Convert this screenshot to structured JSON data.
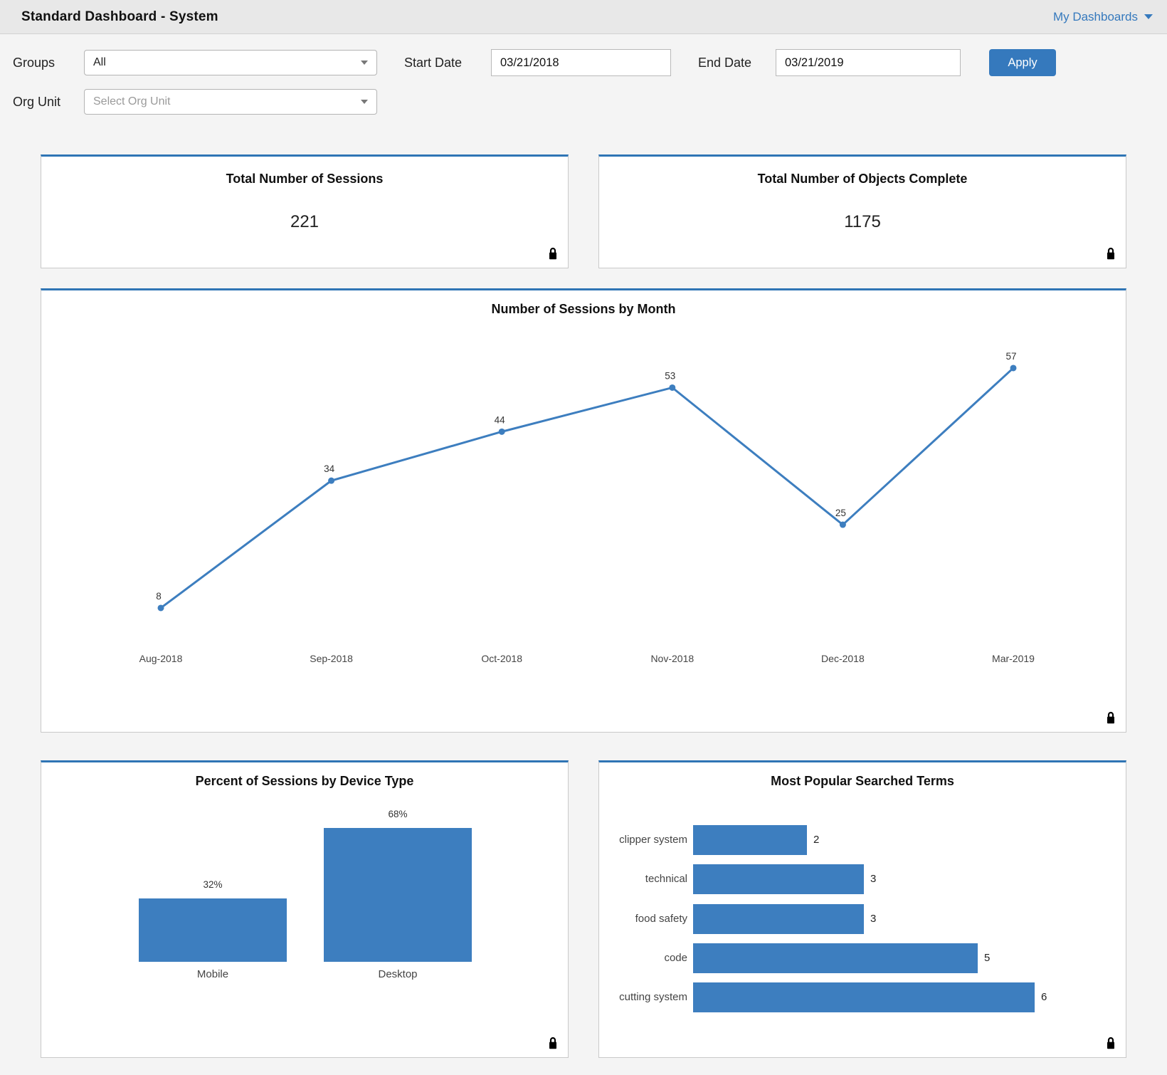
{
  "header": {
    "title": "Standard Dashboard - System",
    "menu_label": "My Dashboards"
  },
  "filters": {
    "groups_label": "Groups",
    "groups_value": "All",
    "org_unit_label": "Org Unit",
    "org_unit_placeholder": "Select Org Unit",
    "start_date_label": "Start Date",
    "start_date_value": "03/21/2018",
    "end_date_label": "End Date",
    "end_date_value": "03/21/2019",
    "apply_label": "Apply"
  },
  "cards": [
    {
      "title": "Total Number of Sessions",
      "value": "221"
    },
    {
      "title": "Total Number of Objects Complete",
      "value": "1175"
    }
  ],
  "chart_data": [
    {
      "type": "line",
      "title": "Number of Sessions by Month",
      "categories": [
        "Aug-2018",
        "Sep-2018",
        "Oct-2018",
        "Nov-2018",
        "Dec-2018",
        "Mar-2019"
      ],
      "values": [
        8,
        34,
        44,
        53,
        25,
        57
      ],
      "ylim": [
        0,
        62
      ],
      "grid": false,
      "point_labels": true,
      "color": "#3d7ebf"
    },
    {
      "type": "bar",
      "title": "Percent of Sessions by Device Type",
      "categories": [
        "Mobile",
        "Desktop"
      ],
      "values": [
        32,
        68
      ],
      "labels": [
        "32%",
        "68%"
      ],
      "unit": "%",
      "ylim": [
        0,
        100
      ],
      "color": "#3d7ebf"
    },
    {
      "type": "hbar",
      "title": "Most Popular Searched Terms",
      "categories": [
        "clipper system",
        "technical",
        "food safety",
        "code",
        "cutting system"
      ],
      "values": [
        2,
        3,
        3,
        5,
        6
      ],
      "xlim": [
        0,
        6.6
      ],
      "color": "#3d7ebf"
    }
  ],
  "icons": {
    "lock": "lock-icon",
    "dropdown": "chevron-down-icon"
  },
  "colors": {
    "accent_blue": "#3579bd",
    "panel_accent": "#2f75b5",
    "chart_blue": "#3d7ebf",
    "header_bg": "#e8e8e8",
    "page_bg": "#f4f4f4"
  }
}
